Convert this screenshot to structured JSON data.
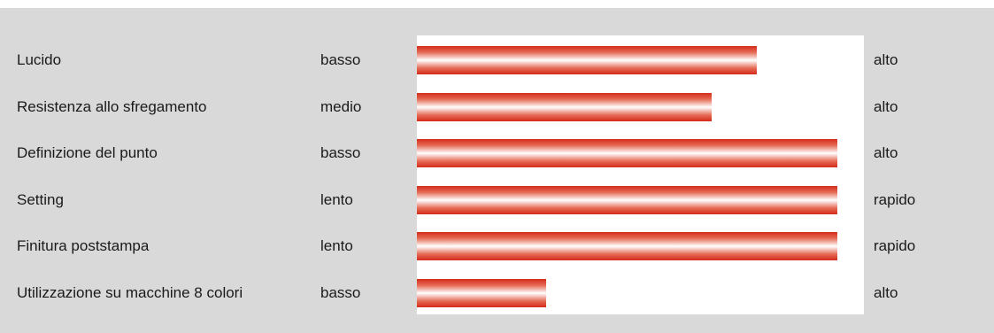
{
  "colors": {
    "bar_edge": "#d42a1a",
    "bar_mid": "#ffffff",
    "panel": "#d9d9d9",
    "plot_bg": "#ffffff"
  },
  "chart_data": {
    "type": "bar",
    "orientation": "horizontal",
    "xlim": [
      0,
      1
    ],
    "grid": false,
    "rows": [
      {
        "label": "Lucido",
        "low": "basso",
        "high": "alto",
        "value": 0.76
      },
      {
        "label": "Resistenza allo sfregamento",
        "low": "medio",
        "high": "alto",
        "value": 0.66
      },
      {
        "label": "Definizione del punto",
        "low": "basso",
        "high": "alto",
        "value": 0.94
      },
      {
        "label": "Setting",
        "low": "lento",
        "high": "rapido",
        "value": 0.94
      },
      {
        "label": "Finitura poststampa",
        "low": "lento",
        "high": "rapido",
        "value": 0.94
      },
      {
        "label": "Utilizzazione su macchine 8 colori",
        "low": "basso",
        "high": "alto",
        "value": 0.29
      }
    ]
  }
}
